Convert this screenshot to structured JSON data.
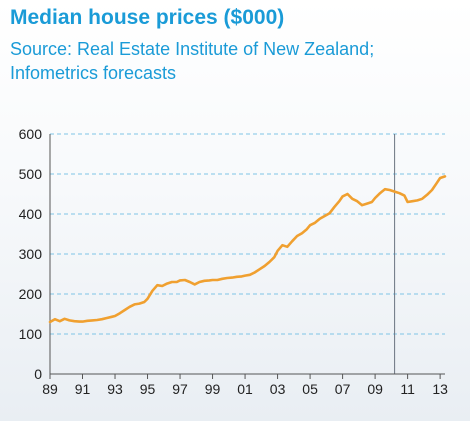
{
  "title": "Median house prices ($000)",
  "subtitle": "Source: Real Estate Institute of New Zealand; Infometrics forecasts",
  "colors": {
    "series": "#f0a030",
    "title": "#1a9bd7",
    "grid": "#7ec4e6",
    "axis": "#555555",
    "divider": "#6a7380"
  },
  "chart_data": {
    "type": "line",
    "title": "Median house prices ($000)",
    "xlabel": "",
    "ylabel": "",
    "ylim": [
      0,
      600
    ],
    "xlim": [
      1989,
      2013.3
    ],
    "y_ticks": [
      "0",
      "100",
      "200",
      "300",
      "400",
      "500",
      "600"
    ],
    "x_ticks": [
      "89",
      "91",
      "93",
      "95",
      "97",
      "99",
      "01",
      "03",
      "05",
      "07",
      "09",
      "11",
      "13"
    ],
    "grid": "horizontal dashed",
    "forecast_divider_x": 2010.2,
    "series": [
      {
        "x": [
          1989.0,
          1989.3,
          1989.6,
          1989.9,
          1990.2,
          1990.5,
          1990.8,
          1991.0,
          1991.3,
          1991.6,
          1991.9,
          1992.2,
          1992.5,
          1992.8,
          1993.0,
          1993.3,
          1993.6,
          1993.9,
          1994.2,
          1994.5,
          1994.8,
          1995.0,
          1995.3,
          1995.6,
          1995.9,
          1996.2,
          1996.5,
          1996.8,
          1997.0,
          1997.3,
          1997.6,
          1997.9,
          1998.2,
          1998.5,
          1998.8,
          1999.0,
          1999.3,
          1999.6,
          1999.9,
          2000.2,
          2000.5,
          2000.8,
          2001.0,
          2001.3,
          2001.6,
          2001.9,
          2002.2,
          2002.5,
          2002.8,
          2003.0,
          2003.3,
          2003.6,
          2003.9,
          2004.2,
          2004.5,
          2004.8,
          2005.0,
          2005.3,
          2005.6,
          2005.9,
          2006.2,
          2006.5,
          2006.8,
          2007.0,
          2007.3,
          2007.6,
          2007.9,
          2008.2,
          2008.5,
          2008.8,
          2009.0,
          2009.3,
          2009.6,
          2009.9,
          2010.2,
          2010.5,
          2010.8,
          2011.0,
          2011.3,
          2011.6,
          2011.9,
          2012.2,
          2012.5,
          2012.8,
          2013.0,
          2013.3
        ],
        "values": [
          130,
          137,
          132,
          138,
          134,
          132,
          131,
          131,
          133,
          134,
          135,
          137,
          140,
          143,
          145,
          152,
          160,
          168,
          174,
          176,
          180,
          188,
          208,
          222,
          220,
          226,
          230,
          230,
          234,
          235,
          230,
          224,
          230,
          233,
          234,
          235,
          235,
          238,
          240,
          241,
          243,
          244,
          246,
          248,
          254,
          262,
          270,
          280,
          292,
          308,
          322,
          318,
          332,
          345,
          352,
          362,
          372,
          378,
          388,
          395,
          402,
          418,
          432,
          444,
          450,
          438,
          432,
          422,
          426,
          430,
          440,
          452,
          462,
          460,
          456,
          452,
          446,
          430,
          432,
          434,
          438,
          448,
          460,
          478,
          490,
          494
        ]
      }
    ]
  }
}
